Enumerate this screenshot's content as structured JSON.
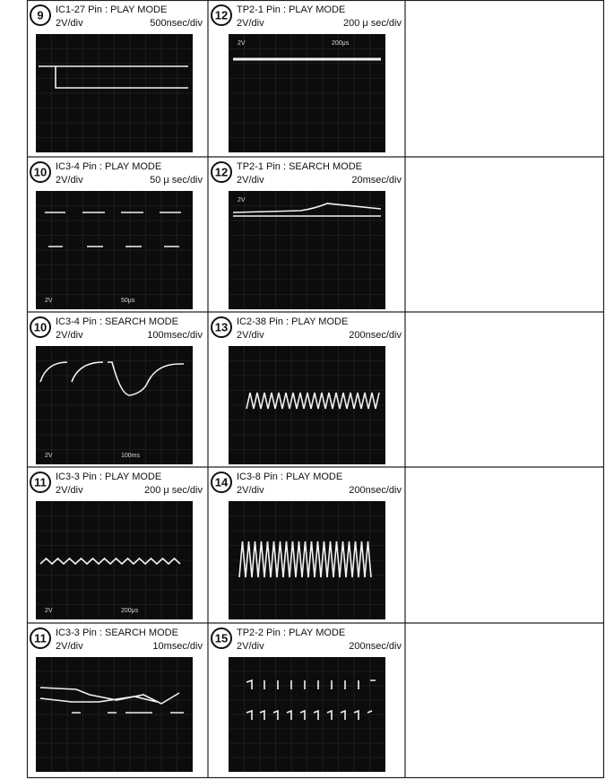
{
  "cells": [
    {
      "number": "9",
      "title": "IC1-27 Pin : PLAY MODE",
      "vdiv": "2V/div",
      "tdiv": "500nsec/div",
      "scope_labels": []
    },
    {
      "number": "12",
      "title": "TP2-1 Pin : PLAY MODE",
      "vdiv": "2V/div",
      "tdiv": "200 μ sec/div",
      "scope_labels": [
        "2V",
        "200μs"
      ]
    },
    {
      "number": "10",
      "title": "IC3-4 Pin : PLAY MODE",
      "vdiv": "2V/div",
      "tdiv": "50 μ sec/div",
      "scope_labels": [
        "2V",
        "50μs"
      ]
    },
    {
      "number": "12",
      "title": "TP2-1 Pin : SEARCH MODE",
      "vdiv": "2V/div",
      "tdiv": "20msec/div",
      "scope_labels": [
        "2V"
      ]
    },
    {
      "number": "10",
      "title": "IC3-4 Pin : SEARCH MODE",
      "vdiv": "2V/div",
      "tdiv": "100msec/div",
      "scope_labels": [
        "2V",
        "100ms"
      ]
    },
    {
      "number": "13",
      "title": "IC2-38 Pin : PLAY MODE",
      "vdiv": "2V/div",
      "tdiv": "200nsec/div",
      "scope_labels": []
    },
    {
      "number": "11",
      "title": "IC3-3 Pin : PLAY MODE",
      "vdiv": "2V/div",
      "tdiv": "200 μ sec/div",
      "scope_labels": [
        "2V",
        "200μs"
      ]
    },
    {
      "number": "14",
      "title": "IC3-8 Pin : PLAY MODE",
      "vdiv": "2V/div",
      "tdiv": "200nsec/div",
      "scope_labels": []
    },
    {
      "number": "11",
      "title": "IC3-3 Pin : SEARCH MODE",
      "vdiv": "2V/div",
      "tdiv": "10msec/div",
      "scope_labels": []
    },
    {
      "number": "15",
      "title": "TP2-2 Pin : PLAY MODE",
      "vdiv": "2V/div",
      "tdiv": "200nsec/div",
      "scope_labels": []
    }
  ]
}
